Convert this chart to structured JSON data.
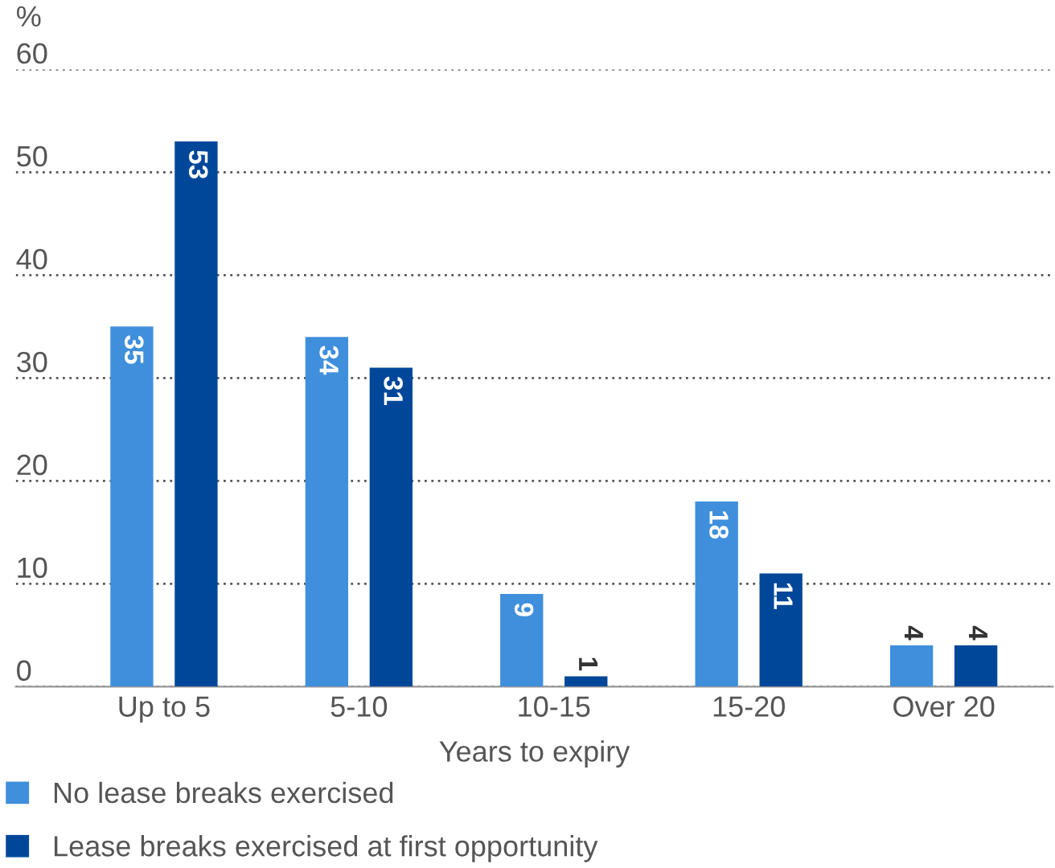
{
  "chart_data": {
    "type": "bar",
    "xlabel": "Years to expiry",
    "ylabel": "%",
    "categories": [
      "Up to 5",
      "5-10",
      "10-15",
      "15-20",
      "Over 20"
    ],
    "series": [
      {
        "name": "No lease breaks exercised",
        "color": "#3f8fdc",
        "values": [
          35,
          34,
          9,
          18,
          4
        ]
      },
      {
        "name": "Lease breaks exercised at first opportunity",
        "color": "#00479a",
        "values": [
          53,
          31,
          1,
          11,
          4
        ]
      }
    ],
    "ylim": [
      0,
      60
    ],
    "yticks": [
      0,
      10,
      20,
      30,
      40,
      50,
      60
    ],
    "grid": "y",
    "legend": "bottom",
    "data_labels": true
  }
}
